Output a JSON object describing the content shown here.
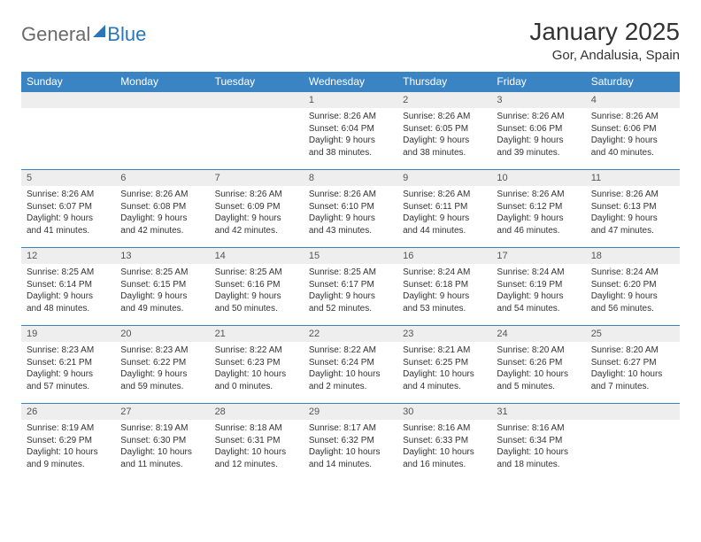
{
  "logo": {
    "general": "General",
    "blue": "Blue"
  },
  "title": "January 2025",
  "location": "Gor, Andalusia, Spain",
  "header_bg": "#3b84c4",
  "header_text_color": "#ffffff",
  "daynum_bg": "#eeeeee",
  "row_border_color": "#3b84c4",
  "dayNames": [
    "Sunday",
    "Monday",
    "Tuesday",
    "Wednesday",
    "Thursday",
    "Friday",
    "Saturday"
  ],
  "weeks": [
    [
      {
        "day": "",
        "sunrise": "",
        "sunset": "",
        "daylight": ""
      },
      {
        "day": "",
        "sunrise": "",
        "sunset": "",
        "daylight": ""
      },
      {
        "day": "",
        "sunrise": "",
        "sunset": "",
        "daylight": ""
      },
      {
        "day": "1",
        "sunrise": "Sunrise: 8:26 AM",
        "sunset": "Sunset: 6:04 PM",
        "daylight": "Daylight: 9 hours and 38 minutes."
      },
      {
        "day": "2",
        "sunrise": "Sunrise: 8:26 AM",
        "sunset": "Sunset: 6:05 PM",
        "daylight": "Daylight: 9 hours and 38 minutes."
      },
      {
        "day": "3",
        "sunrise": "Sunrise: 8:26 AM",
        "sunset": "Sunset: 6:06 PM",
        "daylight": "Daylight: 9 hours and 39 minutes."
      },
      {
        "day": "4",
        "sunrise": "Sunrise: 8:26 AM",
        "sunset": "Sunset: 6:06 PM",
        "daylight": "Daylight: 9 hours and 40 minutes."
      }
    ],
    [
      {
        "day": "5",
        "sunrise": "Sunrise: 8:26 AM",
        "sunset": "Sunset: 6:07 PM",
        "daylight": "Daylight: 9 hours and 41 minutes."
      },
      {
        "day": "6",
        "sunrise": "Sunrise: 8:26 AM",
        "sunset": "Sunset: 6:08 PM",
        "daylight": "Daylight: 9 hours and 42 minutes."
      },
      {
        "day": "7",
        "sunrise": "Sunrise: 8:26 AM",
        "sunset": "Sunset: 6:09 PM",
        "daylight": "Daylight: 9 hours and 42 minutes."
      },
      {
        "day": "8",
        "sunrise": "Sunrise: 8:26 AM",
        "sunset": "Sunset: 6:10 PM",
        "daylight": "Daylight: 9 hours and 43 minutes."
      },
      {
        "day": "9",
        "sunrise": "Sunrise: 8:26 AM",
        "sunset": "Sunset: 6:11 PM",
        "daylight": "Daylight: 9 hours and 44 minutes."
      },
      {
        "day": "10",
        "sunrise": "Sunrise: 8:26 AM",
        "sunset": "Sunset: 6:12 PM",
        "daylight": "Daylight: 9 hours and 46 minutes."
      },
      {
        "day": "11",
        "sunrise": "Sunrise: 8:26 AM",
        "sunset": "Sunset: 6:13 PM",
        "daylight": "Daylight: 9 hours and 47 minutes."
      }
    ],
    [
      {
        "day": "12",
        "sunrise": "Sunrise: 8:25 AM",
        "sunset": "Sunset: 6:14 PM",
        "daylight": "Daylight: 9 hours and 48 minutes."
      },
      {
        "day": "13",
        "sunrise": "Sunrise: 8:25 AM",
        "sunset": "Sunset: 6:15 PM",
        "daylight": "Daylight: 9 hours and 49 minutes."
      },
      {
        "day": "14",
        "sunrise": "Sunrise: 8:25 AM",
        "sunset": "Sunset: 6:16 PM",
        "daylight": "Daylight: 9 hours and 50 minutes."
      },
      {
        "day": "15",
        "sunrise": "Sunrise: 8:25 AM",
        "sunset": "Sunset: 6:17 PM",
        "daylight": "Daylight: 9 hours and 52 minutes."
      },
      {
        "day": "16",
        "sunrise": "Sunrise: 8:24 AM",
        "sunset": "Sunset: 6:18 PM",
        "daylight": "Daylight: 9 hours and 53 minutes."
      },
      {
        "day": "17",
        "sunrise": "Sunrise: 8:24 AM",
        "sunset": "Sunset: 6:19 PM",
        "daylight": "Daylight: 9 hours and 54 minutes."
      },
      {
        "day": "18",
        "sunrise": "Sunrise: 8:24 AM",
        "sunset": "Sunset: 6:20 PM",
        "daylight": "Daylight: 9 hours and 56 minutes."
      }
    ],
    [
      {
        "day": "19",
        "sunrise": "Sunrise: 8:23 AM",
        "sunset": "Sunset: 6:21 PM",
        "daylight": "Daylight: 9 hours and 57 minutes."
      },
      {
        "day": "20",
        "sunrise": "Sunrise: 8:23 AM",
        "sunset": "Sunset: 6:22 PM",
        "daylight": "Daylight: 9 hours and 59 minutes."
      },
      {
        "day": "21",
        "sunrise": "Sunrise: 8:22 AM",
        "sunset": "Sunset: 6:23 PM",
        "daylight": "Daylight: 10 hours and 0 minutes."
      },
      {
        "day": "22",
        "sunrise": "Sunrise: 8:22 AM",
        "sunset": "Sunset: 6:24 PM",
        "daylight": "Daylight: 10 hours and 2 minutes."
      },
      {
        "day": "23",
        "sunrise": "Sunrise: 8:21 AM",
        "sunset": "Sunset: 6:25 PM",
        "daylight": "Daylight: 10 hours and 4 minutes."
      },
      {
        "day": "24",
        "sunrise": "Sunrise: 8:20 AM",
        "sunset": "Sunset: 6:26 PM",
        "daylight": "Daylight: 10 hours and 5 minutes."
      },
      {
        "day": "25",
        "sunrise": "Sunrise: 8:20 AM",
        "sunset": "Sunset: 6:27 PM",
        "daylight": "Daylight: 10 hours and 7 minutes."
      }
    ],
    [
      {
        "day": "26",
        "sunrise": "Sunrise: 8:19 AM",
        "sunset": "Sunset: 6:29 PM",
        "daylight": "Daylight: 10 hours and 9 minutes."
      },
      {
        "day": "27",
        "sunrise": "Sunrise: 8:19 AM",
        "sunset": "Sunset: 6:30 PM",
        "daylight": "Daylight: 10 hours and 11 minutes."
      },
      {
        "day": "28",
        "sunrise": "Sunrise: 8:18 AM",
        "sunset": "Sunset: 6:31 PM",
        "daylight": "Daylight: 10 hours and 12 minutes."
      },
      {
        "day": "29",
        "sunrise": "Sunrise: 8:17 AM",
        "sunset": "Sunset: 6:32 PM",
        "daylight": "Daylight: 10 hours and 14 minutes."
      },
      {
        "day": "30",
        "sunrise": "Sunrise: 8:16 AM",
        "sunset": "Sunset: 6:33 PM",
        "daylight": "Daylight: 10 hours and 16 minutes."
      },
      {
        "day": "31",
        "sunrise": "Sunrise: 8:16 AM",
        "sunset": "Sunset: 6:34 PM",
        "daylight": "Daylight: 10 hours and 18 minutes."
      },
      {
        "day": "",
        "sunrise": "",
        "sunset": "",
        "daylight": ""
      }
    ]
  ]
}
